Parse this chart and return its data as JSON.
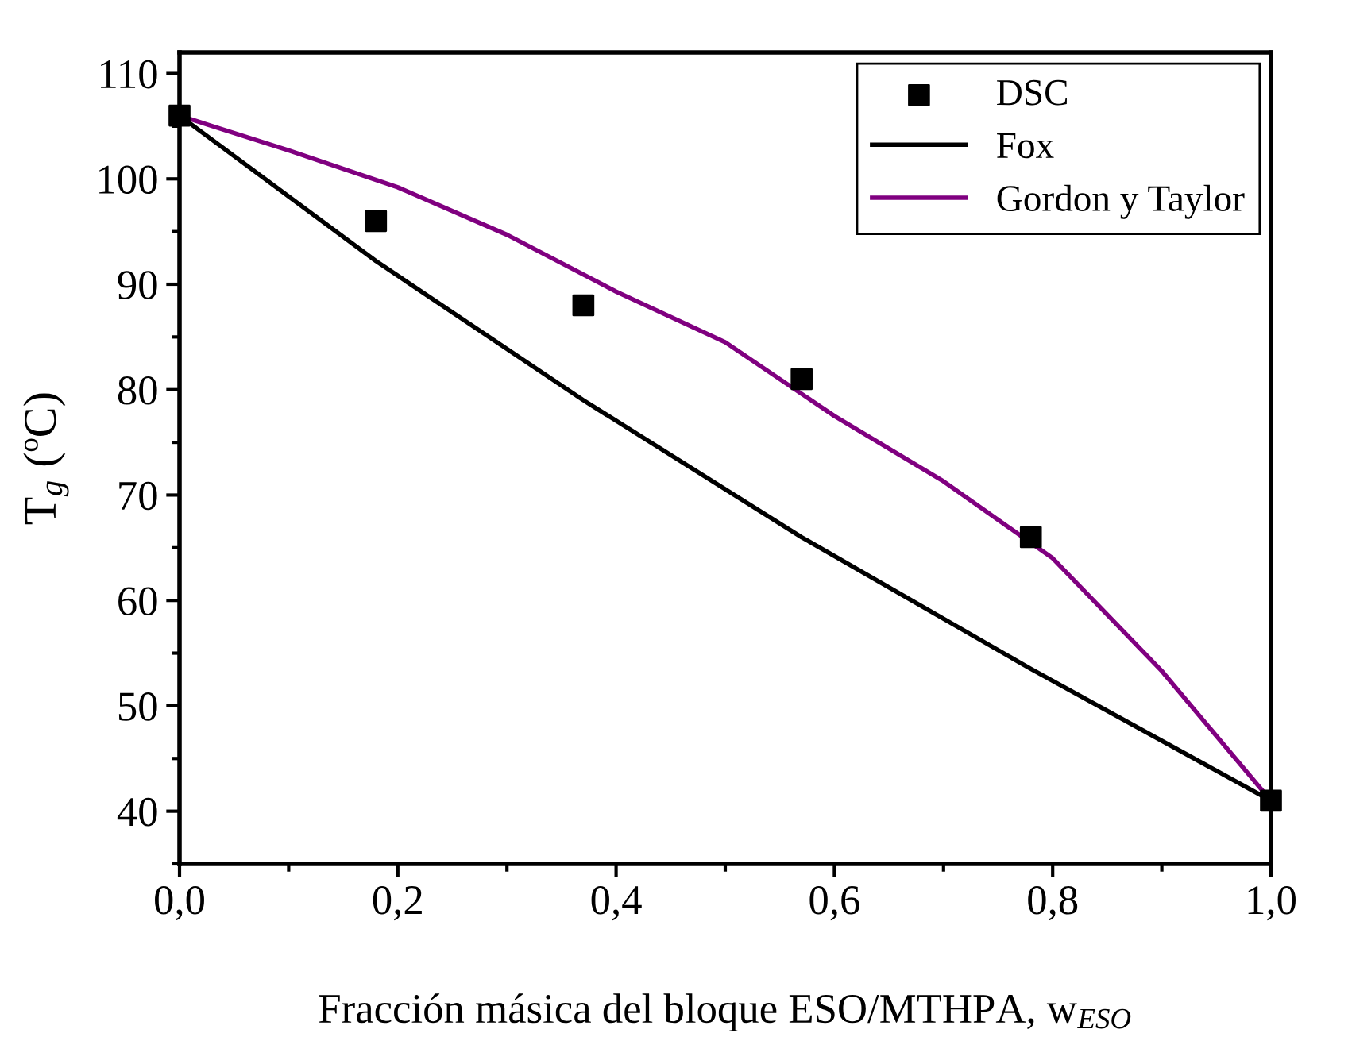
{
  "chart_data": {
    "type": "line",
    "xlabel": "Fracción másica del bloque ESO/MTHPA, w$_{ESO}$",
    "ylabel": "T$_{g}$ (ºC)",
    "xlim": [
      0,
      1
    ],
    "ylim": [
      35,
      112
    ],
    "xticks": [
      {
        "value": 0,
        "label": "0,0"
      },
      {
        "value": 0.1,
        "label": null
      },
      {
        "value": 0.2,
        "label": "0,2"
      },
      {
        "value": 0.3,
        "label": null
      },
      {
        "value": 0.4,
        "label": "0,4"
      },
      {
        "value": 0.5,
        "label": null
      },
      {
        "value": 0.6,
        "label": "0,6"
      },
      {
        "value": 0.7,
        "label": null
      },
      {
        "value": 0.8,
        "label": "0,8"
      },
      {
        "value": 0.9,
        "label": null
      },
      {
        "value": 1,
        "label": "1,0"
      }
    ],
    "yticks": [
      {
        "value": 35,
        "label": null
      },
      40,
      {
        "value": 45,
        "label": null
      },
      50,
      {
        "value": 55,
        "label": null
      },
      60,
      {
        "value": 65,
        "label": null
      },
      70,
      {
        "value": 75,
        "label": null
      },
      80,
      {
        "value": 85,
        "label": null
      },
      90,
      {
        "value": 95,
        "label": null
      },
      100,
      {
        "value": 105,
        "label": null
      },
      110
    ],
    "grid": false,
    "legend": "top right",
    "series": [
      {
        "name": "DSC",
        "type": "scatter",
        "marker": "square",
        "color": "#000000",
        "x": [
          0,
          0.18,
          0.37,
          0.57,
          0.78,
          1.0
        ],
        "values": [
          106,
          96,
          88,
          81,
          66,
          41
        ]
      },
      {
        "name": "Fox",
        "marker": "none",
        "color": "#000000",
        "x": [
          0,
          0.18,
          0.37,
          0.57,
          0.78,
          1.0
        ],
        "values": [
          106,
          92.2,
          79,
          66,
          53.5,
          41
        ]
      },
      {
        "name": "Gordon y Taylor",
        "marker": "none",
        "color": "#800080",
        "x": [
          0,
          0.1,
          0.2,
          0.3,
          0.4,
          0.5,
          0.6,
          0.7,
          0.8,
          0.9,
          1.0
        ],
        "values": [
          106,
          102.7,
          99.2,
          94.7,
          89.3,
          84.5,
          77.5,
          71.3,
          64,
          53.3,
          41
        ]
      }
    ]
  }
}
